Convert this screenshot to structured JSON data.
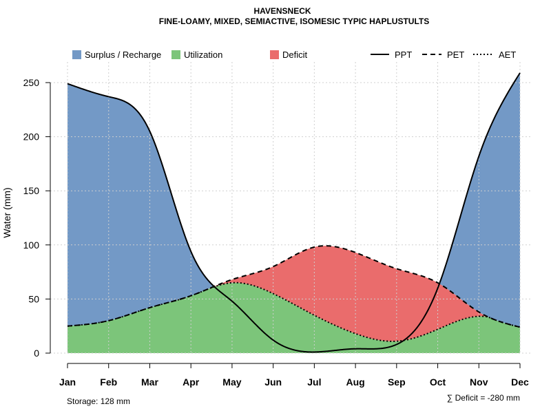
{
  "chart_data": {
    "type": "area",
    "title": "HAVENSNECK",
    "subtitle": "FINE-LOAMY, MIXED, SEMIACTIVE, ISOMESIC TYPIC HAPLUSTULTS",
    "xlabel": "",
    "ylabel": "Water (mm)",
    "ylim": [
      0,
      270
    ],
    "yticks": [
      0,
      50,
      100,
      150,
      200,
      250
    ],
    "grid": true,
    "categories": [
      "Jan",
      "Feb",
      "Mar",
      "Apr",
      "May",
      "Jun",
      "Jul",
      "Aug",
      "Sep",
      "Oct",
      "Nov",
      "Dec"
    ],
    "series": [
      {
        "name": "PPT",
        "line_style": "solid",
        "values": [
          249,
          237,
          205,
          94,
          48,
          12,
          1,
          4,
          8,
          60,
          182,
          259
        ]
      },
      {
        "name": "PET",
        "line_style": "dashed",
        "values": [
          25,
          30,
          42,
          53,
          68,
          80,
          98,
          93,
          78,
          65,
          38,
          24
        ]
      },
      {
        "name": "AET",
        "line_style": "dotted",
        "values": [
          25,
          30,
          42,
          53,
          65,
          55,
          35,
          18,
          11,
          22,
          34,
          24
        ]
      }
    ],
    "fills": [
      {
        "name": "Surplus / Recharge",
        "color": "#7399c6"
      },
      {
        "name": "Utilization",
        "color": "#7cc57a"
      },
      {
        "name": "Deficit",
        "color": "#ea6c6c"
      }
    ],
    "legend_position": "top",
    "annotations": {
      "storage": "Storage: 128 mm",
      "deficit": "∑ Deficit = -280 mm"
    }
  }
}
